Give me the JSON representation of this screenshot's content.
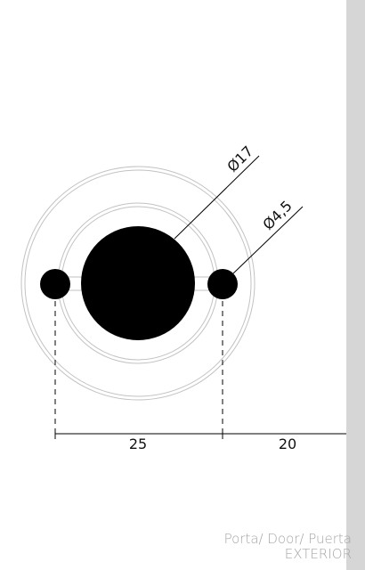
{
  "dimensions": {
    "large_hole_diameter": "Ø17",
    "small_hole_diameter": "Ø4,5",
    "hole_spacing": "25",
    "edge_distance": "20"
  },
  "caption": {
    "line1": "Porta/ Door/ Puerta",
    "line2": "EXTERIOR"
  },
  "colors": {
    "outline": "#c2c2c2",
    "fill": "#000000",
    "wall": "#d6d6d6",
    "caption": "#a6a6a6"
  }
}
